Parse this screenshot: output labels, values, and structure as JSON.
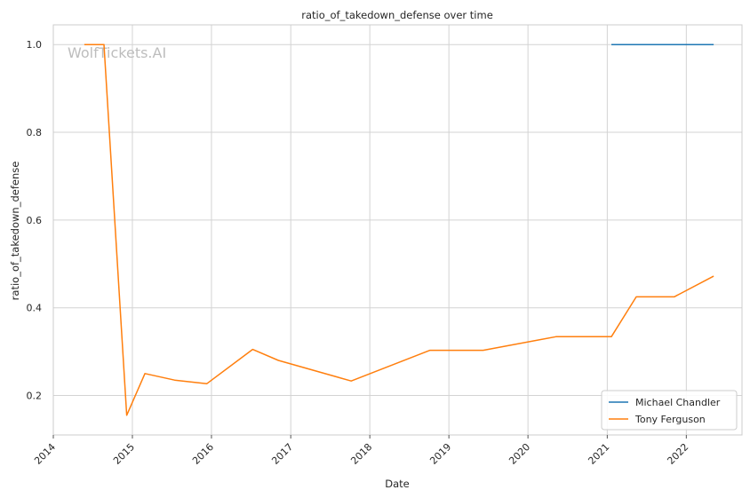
{
  "chart_data": {
    "type": "line",
    "title": "ratio_of_takedown_defense over time",
    "xlabel": "Date",
    "ylabel": "ratio_of_takedown_defense",
    "watermark": "WolfTickets.AI",
    "x_ticks": [
      "2014",
      "2015",
      "2016",
      "2017",
      "2018",
      "2019",
      "2020",
      "2021",
      "2022"
    ],
    "y_ticks": [
      "0.2",
      "0.4",
      "0.6",
      "0.8",
      "1.0"
    ],
    "xlim": [
      "2014-01-01",
      "2022-09-15"
    ],
    "ylim": [
      0.11,
      1.045
    ],
    "grid": true,
    "legend_position": "lower-right",
    "series": [
      {
        "name": "Michael Chandler",
        "color": "#1f77b4",
        "points": [
          [
            "2021-01-20",
            1.0
          ],
          [
            "2022-05-07",
            1.0
          ]
        ]
      },
      {
        "name": "Tony Ferguson",
        "color": "#ff7f0e",
        "points": [
          [
            "2014-05-24",
            1.0
          ],
          [
            "2014-08-23",
            1.0
          ],
          [
            "2014-12-06",
            0.155
          ],
          [
            "2015-02-28",
            0.25
          ],
          [
            "2015-07-15",
            0.235
          ],
          [
            "2015-12-11",
            0.227
          ],
          [
            "2016-07-09",
            0.305
          ],
          [
            "2016-11-05",
            0.28
          ],
          [
            "2017-10-07",
            0.233
          ],
          [
            "2018-10-06",
            0.303
          ],
          [
            "2019-06-08",
            0.303
          ],
          [
            "2020-05-09",
            0.334
          ],
          [
            "2021-01-20",
            0.334
          ],
          [
            "2021-05-15",
            0.425
          ],
          [
            "2021-11-06",
            0.425
          ],
          [
            "2022-05-07",
            0.472
          ]
        ]
      }
    ]
  }
}
